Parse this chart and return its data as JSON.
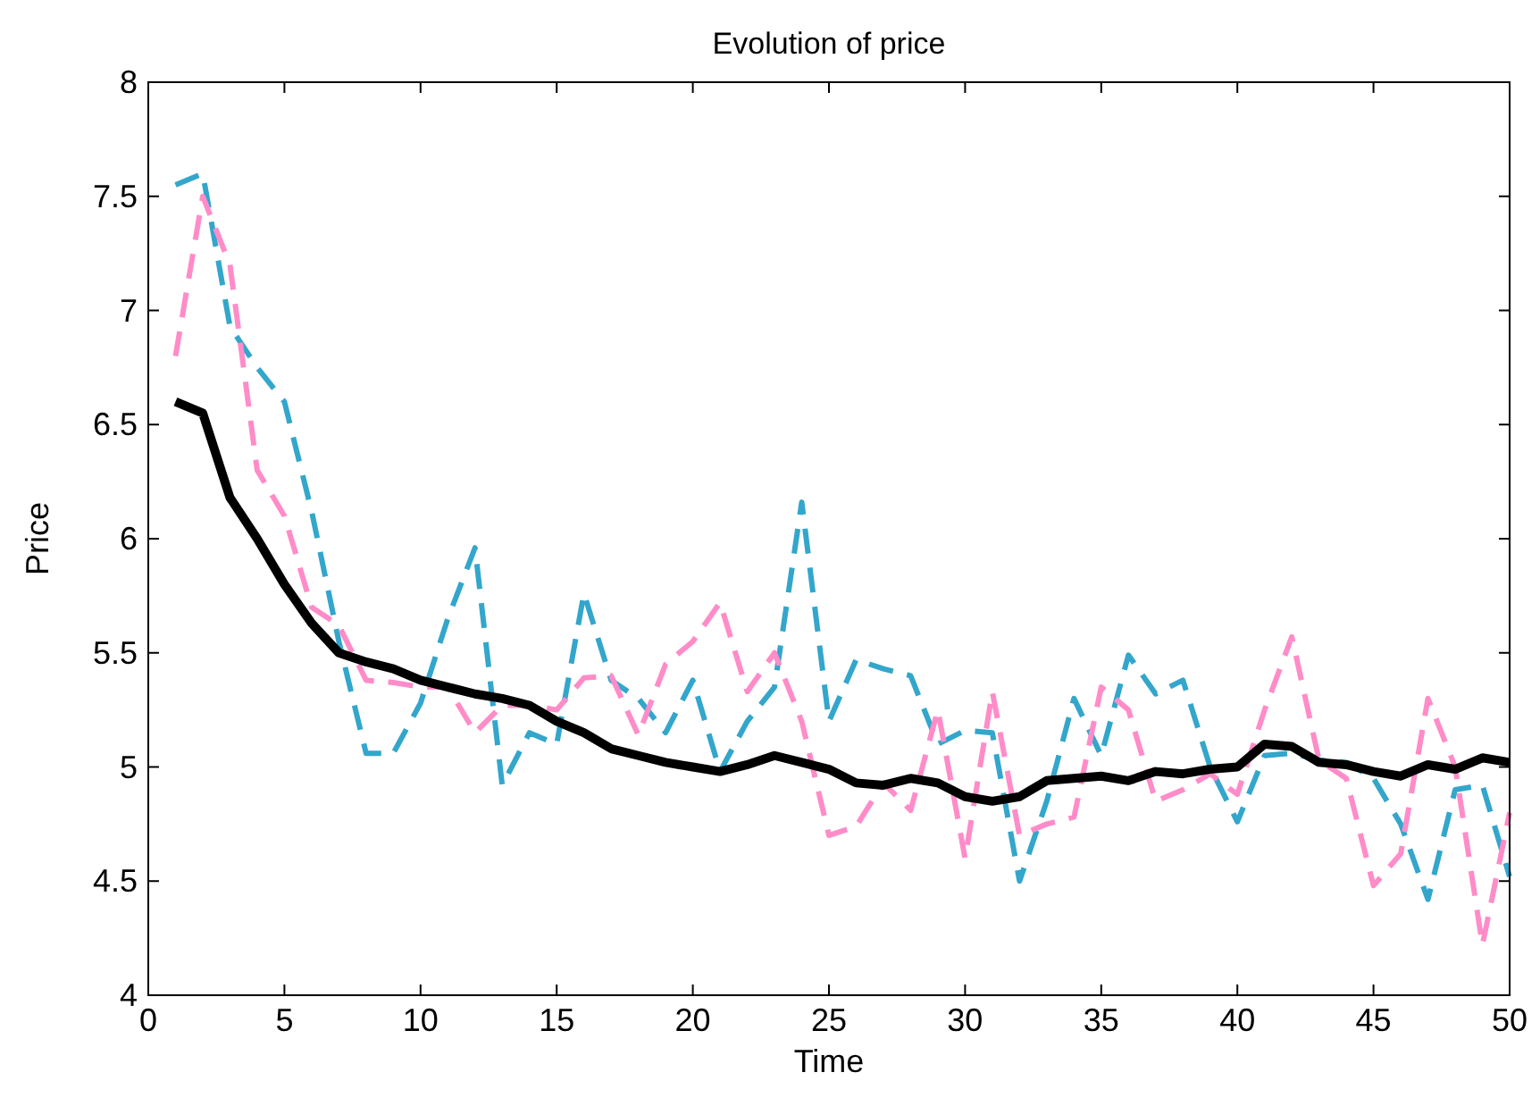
{
  "chart_data": {
    "type": "line",
    "title": "Evolution of price",
    "xlabel": "Time",
    "ylabel": "Price",
    "xlim": [
      0,
      50
    ],
    "xticks": [
      0,
      5,
      10,
      15,
      20,
      25,
      30,
      35,
      40,
      45,
      50
    ],
    "ylim": [
      4,
      8
    ],
    "yticks": [
      4,
      4.5,
      5,
      5.5,
      6,
      6.5,
      7,
      7.5,
      8
    ],
    "grid": false,
    "marker": "none",
    "x": [
      1,
      2,
      3,
      4,
      5,
      6,
      7,
      8,
      9,
      10,
      11,
      12,
      13,
      14,
      15,
      16,
      17,
      18,
      19,
      20,
      21,
      22,
      23,
      24,
      25,
      26,
      27,
      28,
      29,
      30,
      31,
      32,
      33,
      34,
      35,
      36,
      37,
      38,
      39,
      40,
      41,
      42,
      43,
      44,
      45,
      46,
      47,
      48,
      49,
      50
    ],
    "series": [
      {
        "color": "#33a6cc",
        "line_style": "dashed",
        "values": [
          7.55,
          7.6,
          6.93,
          6.75,
          6.6,
          6.12,
          5.55,
          5.06,
          5.06,
          5.28,
          5.65,
          5.96,
          4.92,
          5.15,
          5.1,
          5.76,
          5.38,
          5.3,
          5.15,
          5.38,
          4.98,
          5.2,
          5.35,
          6.16,
          5.2,
          5.47,
          5.43,
          5.4,
          5.1,
          5.16,
          5.15,
          4.5,
          4.85,
          5.3,
          5.05,
          5.49,
          5.32,
          5.38,
          5.0,
          4.76,
          5.05,
          5.06,
          5.03,
          5.02,
          4.95,
          4.75,
          4.42,
          4.9,
          4.92,
          4.52
        ]
      },
      {
        "color": "#ff8cc8",
        "line_style": "dashed",
        "values": [
          6.8,
          7.5,
          7.2,
          6.3,
          6.1,
          5.7,
          5.62,
          5.38,
          5.37,
          5.35,
          5.35,
          5.15,
          5.27,
          5.27,
          5.25,
          5.39,
          5.4,
          5.14,
          5.45,
          5.55,
          5.72,
          5.33,
          5.5,
          5.2,
          4.7,
          4.74,
          4.93,
          4.81,
          5.25,
          4.6,
          5.33,
          4.7,
          4.75,
          4.78,
          5.35,
          5.25,
          4.85,
          4.9,
          4.97,
          4.88,
          5.25,
          5.57,
          5.03,
          4.95,
          4.48,
          4.62,
          5.3,
          5.0,
          4.22,
          4.8
        ]
      },
      {
        "color": "#000000",
        "line_style": "solid",
        "values": [
          6.6,
          6.55,
          6.18,
          6.0,
          5.8,
          5.63,
          5.5,
          5.46,
          5.43,
          5.38,
          5.35,
          5.32,
          5.3,
          5.27,
          5.2,
          5.15,
          5.08,
          5.05,
          5.02,
          5.0,
          4.98,
          5.01,
          5.05,
          5.02,
          4.99,
          4.93,
          4.92,
          4.95,
          4.93,
          4.87,
          4.85,
          4.87,
          4.94,
          4.95,
          4.96,
          4.94,
          4.98,
          4.97,
          4.99,
          5.0,
          5.1,
          5.09,
          5.02,
          5.01,
          4.98,
          4.96,
          5.01,
          4.99,
          5.04,
          5.02
        ]
      }
    ]
  }
}
